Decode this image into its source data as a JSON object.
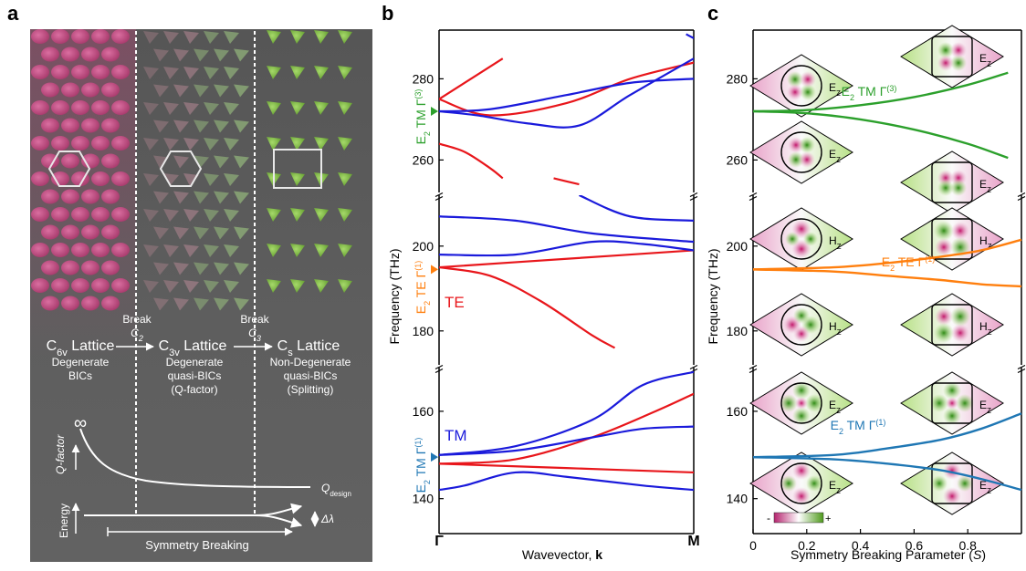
{
  "panels": {
    "a": "a",
    "b": "b",
    "c": "c"
  },
  "panel_a": {
    "lattices": [
      {
        "name": "C",
        "sub": "6v",
        "suffix": " Lattice",
        "desc": [
          "Degenerate",
          "BICs"
        ]
      },
      {
        "name": "C",
        "sub": "3v",
        "suffix": " Lattice",
        "desc": [
          "Degenerate",
          "quasi-BICs",
          "(Q-factor)"
        ]
      },
      {
        "name": "C",
        "sub": "s",
        "suffix": " Lattice",
        "desc": [
          "Non-Degenerate",
          "quasi-BICs",
          "(Splitting)"
        ]
      }
    ],
    "breaks": [
      {
        "word": "Break",
        "sym": "C",
        "sub": "2"
      },
      {
        "word": "Break",
        "sym": "C",
        "sub": "3"
      }
    ],
    "infinity": "∞",
    "qfactor_label": "Q-factor",
    "qdesign": "Q",
    "qdesign_sub": "design",
    "energy_label": "Energy",
    "delta_lambda": "Δλ",
    "sym_breaking": "Symmetry Breaking",
    "colors": {
      "bg": "#5d5d5d",
      "pink": "#c2457c",
      "green": "#7bb44a"
    }
  },
  "chart_data": [
    {
      "type": "line",
      "panel": "b",
      "xlabel": "Wavevector, k",
      "ylabel": "Frequency (THz)",
      "x_ticks": [
        "Γ",
        "M"
      ],
      "y_ticks": [
        140,
        160,
        180,
        200,
        260,
        280
      ],
      "y_segments": [
        [
          132,
          170
        ],
        [
          172,
          212
        ],
        [
          252,
          292
        ]
      ],
      "mode_labels": [
        {
          "text": "E2 TM Γ(3)",
          "freq": 272,
          "color": "#2ca02c"
        },
        {
          "text": "E2 TE Γ(1)",
          "freq": 194.5,
          "color": "#ff7f0e"
        },
        {
          "text": "E2 TM Γ(1)",
          "freq": 149.5,
          "color": "#1f77b4"
        }
      ],
      "series_labels": [
        {
          "text": "TE",
          "color": "#e8161b"
        },
        {
          "text": "TM",
          "color": "#1a1adb"
        }
      ],
      "series": [
        {
          "name": "TE",
          "color": "#e8161b",
          "bands": [
            [
              [
                0,
                275
              ],
              [
                0.25,
                285
              ],
              [
                0.5,
                293
              ]
            ],
            [
              [
                0,
                275
              ],
              [
                0.2,
                271
              ],
              [
                0.5,
                274
              ],
              [
                0.75,
                280
              ],
              [
                1,
                284
              ]
            ],
            [
              [
                0,
                264
              ],
              [
                0.1,
                262
              ],
              [
                0.2,
                258
              ],
              [
                0.25,
                255.5
              ]
            ],
            [
              [
                0.45,
                255.5
              ],
              [
                0.55,
                254
              ]
            ],
            [
              [
                0,
                195
              ],
              [
                0.5,
                197
              ],
              [
                1,
                199
              ]
            ],
            [
              [
                0,
                195
              ],
              [
                0.2,
                193
              ],
              [
                0.4,
                187
              ],
              [
                0.6,
                179
              ],
              [
                0.69,
                176
              ]
            ],
            [
              [
                0,
                148
              ],
              [
                0.3,
                149
              ],
              [
                0.6,
                154
              ],
              [
                0.85,
                160
              ],
              [
                1,
                164
              ]
            ],
            [
              [
                0,
                148
              ],
              [
                0.5,
                147
              ],
              [
                1,
                146
              ]
            ]
          ]
        },
        {
          "name": "TM",
          "color": "#1a1adb",
          "bands": [
            [
              [
                0,
                272
              ],
              [
                0.2,
                272.5
              ],
              [
                0.5,
                276
              ],
              [
                0.75,
                279
              ],
              [
                1,
                280
              ]
            ],
            [
              [
                0,
                272
              ],
              [
                0.15,
                271
              ],
              [
                0.35,
                269
              ],
              [
                0.55,
                268.5
              ],
              [
                0.75,
                276
              ],
              [
                1,
                285
              ]
            ],
            [
              [
                0.93,
                293
              ],
              [
                0.97,
                291
              ],
              [
                1,
                290
              ]
            ],
            [
              [
                0,
                207
              ],
              [
                0.3,
                206
              ],
              [
                0.6,
                203
              ],
              [
                1,
                201
              ]
            ],
            [
              [
                0,
                198
              ],
              [
                0.3,
                198
              ],
              [
                0.6,
                201
              ],
              [
                0.8,
                200.5
              ],
              [
                1,
                199
              ]
            ],
            [
              [
                0.55,
                212
              ],
              [
                0.75,
                207
              ],
              [
                1,
                206
              ]
            ],
            [
              [
                0,
                150
              ],
              [
                0.3,
                152
              ],
              [
                0.6,
                158
              ],
              [
                0.8,
                166
              ],
              [
                1,
                169
              ]
            ],
            [
              [
                0,
                150
              ],
              [
                0.3,
                151
              ],
              [
                0.6,
                154
              ],
              [
                0.8,
                156
              ],
              [
                1,
                156.5
              ]
            ],
            [
              [
                0,
                142
              ],
              [
                0.1,
                143
              ],
              [
                0.3,
                146
              ],
              [
                0.5,
                145
              ],
              [
                0.8,
                143
              ],
              [
                1,
                142
              ]
            ]
          ]
        }
      ]
    },
    {
      "type": "line",
      "panel": "c",
      "xlabel": "Symmetry Breaking Parameter (S)",
      "ylabel": "Frequency (THz)",
      "xlim": [
        0,
        1
      ],
      "x_ticks": [
        0,
        0.2,
        0.4,
        0.6,
        0.8
      ],
      "y_ticks": [
        140,
        160,
        180,
        200,
        260,
        280
      ],
      "y_segments": [
        [
          132,
          170
        ],
        [
          172,
          212
        ],
        [
          252,
          292
        ]
      ],
      "mode_labels": [
        {
          "text": "E2 TM Γ(3)",
          "color": "#2ca02c"
        },
        {
          "text": "E2 TE Γ(1)",
          "color": "#ff7f0e"
        },
        {
          "text": "E2 TM Γ(1)",
          "color": "#1f77b4"
        }
      ],
      "field_labels": [
        "EZ",
        "EZ",
        "HZ",
        "HZ",
        "HZ",
        "HZ",
        "EZ",
        "EZ",
        "EZ",
        "EZ"
      ],
      "colorbar": {
        "min": "-",
        "max": "+"
      },
      "series": [
        {
          "name": "",
          "color": "#2ca02c",
          "points": [
            [
              0,
              272
            ],
            [
              0.2,
              272.3
            ],
            [
              0.4,
              273.5
            ],
            [
              0.6,
              275.5
            ],
            [
              0.8,
              278.5
            ],
            [
              0.95,
              281.5
            ]
          ]
        },
        {
          "name": "",
          "color": "#2ca02c",
          "points": [
            [
              0,
              272
            ],
            [
              0.2,
              271.5
            ],
            [
              0.4,
              270
            ],
            [
              0.6,
              267.5
            ],
            [
              0.8,
              264
            ],
            [
              0.95,
              260.5
            ]
          ]
        },
        {
          "name": "",
          "color": "#ff7f0e",
          "points": [
            [
              0,
              194.5
            ],
            [
              0.3,
              195
            ],
            [
              0.5,
              196
            ],
            [
              0.7,
              197.5
            ],
            [
              0.85,
              199
            ],
            [
              1,
              201.5
            ]
          ]
        },
        {
          "name": "",
          "color": "#ff7f0e",
          "points": [
            [
              0,
              194.5
            ],
            [
              0.3,
              194
            ],
            [
              0.5,
              193
            ],
            [
              0.7,
              192
            ],
            [
              0.85,
              191
            ],
            [
              1,
              190.5
            ]
          ]
        },
        {
          "name": "",
          "color": "#1f77b4",
          "points": [
            [
              0,
              149.5
            ],
            [
              0.3,
              150
            ],
            [
              0.5,
              151.5
            ],
            [
              0.7,
              153.5
            ],
            [
              0.85,
              156
            ],
            [
              1,
              159.5
            ]
          ]
        },
        {
          "name": "",
          "color": "#1f77b4",
          "points": [
            [
              0,
              149.5
            ],
            [
              0.3,
              149
            ],
            [
              0.5,
              148
            ],
            [
              0.7,
              146.5
            ],
            [
              0.85,
              144.5
            ],
            [
              1,
              142
            ]
          ]
        }
      ]
    }
  ]
}
